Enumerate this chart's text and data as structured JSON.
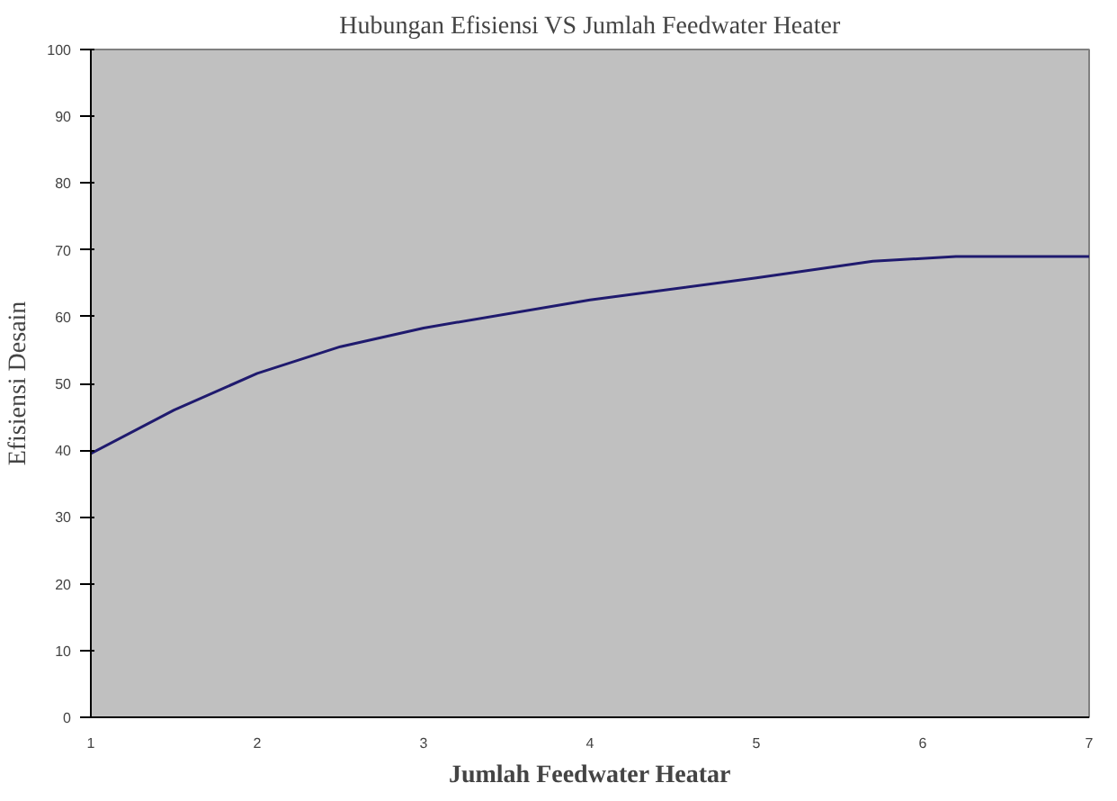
{
  "chart_data": {
    "type": "line",
    "title": "Hubungan Efisiensi VS Jumlah Feedwater Heater",
    "xlabel": "Jumlah Feedwater Heatar",
    "ylabel": "Efisiensi Desain",
    "x": [
      1,
      1.5,
      2,
      2.5,
      3,
      4,
      5,
      5.7,
      6.2,
      7
    ],
    "series": [
      {
        "color": "#1f1a6e",
        "values": [
          39.5,
          46,
          51.5,
          55.5,
          58.3,
          62.5,
          65.8,
          68.3,
          69,
          69
        ]
      }
    ],
    "xlim": [
      1,
      7
    ],
    "xticks": [
      1,
      2,
      3,
      4,
      5,
      6,
      7
    ],
    "ylim": [
      0,
      100
    ],
    "yticks": [
      0,
      10,
      20,
      30,
      40,
      50,
      60,
      70,
      80,
      90,
      100
    ],
    "grid": false,
    "marker": "none",
    "line_style": "solid"
  }
}
